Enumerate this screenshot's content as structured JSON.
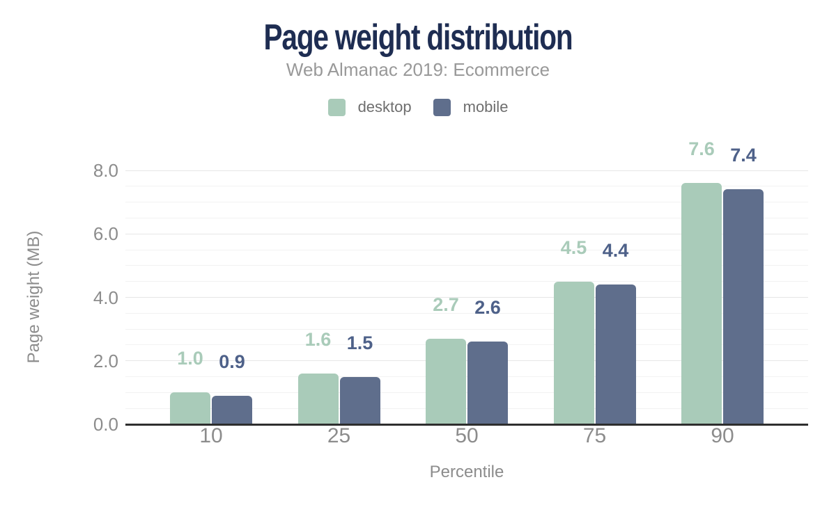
{
  "chart_data": {
    "type": "bar",
    "title": "Page weight distribution",
    "subtitle": "Web Almanac 2019: Ecommerce",
    "xlabel": "Percentile",
    "ylabel": "Page weight (MB)",
    "categories": [
      "10",
      "25",
      "50",
      "75",
      "90"
    ],
    "series": [
      {
        "name": "desktop",
        "values": [
          1.0,
          1.6,
          2.7,
          4.5,
          7.6
        ]
      },
      {
        "name": "mobile",
        "values": [
          0.9,
          1.5,
          2.6,
          4.4,
          7.4
        ]
      }
    ],
    "ylim": [
      0,
      8
    ],
    "yticks": [
      0,
      2,
      4,
      6,
      8
    ],
    "ytick_labels": [
      "0.0",
      "2.0",
      "4.0",
      "6.0",
      "8.0"
    ],
    "minor_grid_step": 0.5,
    "grid": true,
    "legend_position": "top",
    "value_labels_decimals": 1
  },
  "legend": [
    {
      "label": "desktop"
    },
    {
      "label": "mobile"
    }
  ],
  "colors": {
    "desktop_bar": "#a9cbb9",
    "mobile_bar": "#5f6e8c",
    "desktop_value_label": "#a9cbb9",
    "mobile_value_label": "#4e6189",
    "title": "#1e2d52",
    "subtitle": "#999999",
    "legend_text": "#6e6e6e",
    "tick_text": "#8c8c8c",
    "axis_title_text": "#8c8c8c",
    "axis_line": "#2e2e2e",
    "grid_major": "#e6e6e6",
    "grid_minor": "#f2f2f2",
    "background": "#ffffff"
  }
}
